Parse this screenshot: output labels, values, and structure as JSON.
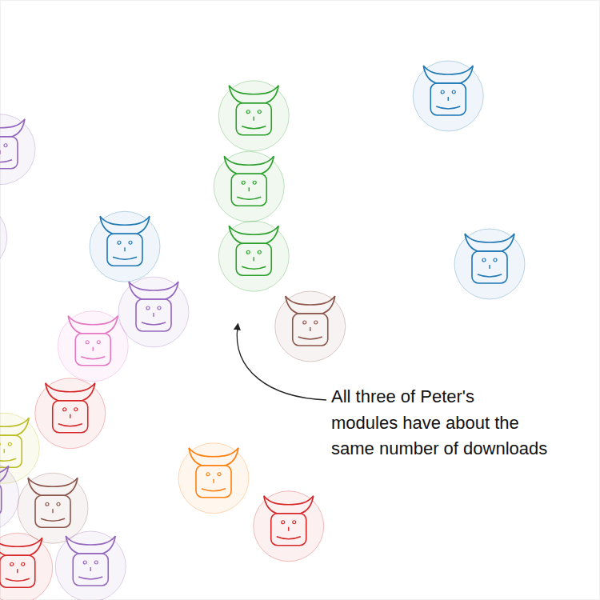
{
  "chart_data": {
    "type": "scatter",
    "annotation": [
      "All three of Peter's",
      "modules have about the",
      "same number of downloads"
    ],
    "x": [
      0,
      -4.7,
      42.3,
      41.5,
      42.3,
      74.7,
      81.6,
      20.8,
      25.6,
      51.7,
      15.5,
      11.7,
      0.7,
      35.6,
      48.1,
      8.8,
      2.9,
      15.1,
      -2.7
    ],
    "values": [
      75.1,
      60.4,
      80.7,
      68.9,
      57.3,
      84.0,
      56.0,
      58.9,
      48.0,
      45.6,
      42.3,
      31.1,
      25.3,
      20.3,
      12.3,
      15.3,
      5.3,
      5.6,
      17.3
    ],
    "colors": [
      "#9467bd",
      "#9467bd",
      "#2ca02c",
      "#2ca02c",
      "#2ca02c",
      "#1f77b4",
      "#1f77b4",
      "#1f77b4",
      "#9467bd",
      "#8c564b",
      "#e377c2",
      "#d62728",
      "#bcbd22",
      "#ff7f0e",
      "#d62728",
      "#8c564b",
      "#d62728",
      "#9467bd",
      "#9467bd"
    ],
    "xlim": [
      0,
      100
    ],
    "ylim": [
      0,
      100
    ],
    "tick_labels": false,
    "marker": "face"
  }
}
